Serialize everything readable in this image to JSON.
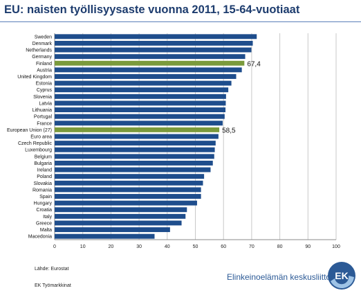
{
  "title": "EU: naisten työllisyysaste vuonna 2011, 15-64-vuotiaat",
  "source": "Lähde: Eurostat",
  "footer_left": "EK Työmarkkinat",
  "brand": "Elinkeinoelämän keskusliitto",
  "logo_text": "EK",
  "colors": {
    "bar": "#1e4d8c",
    "highlight": "#7a9a3c",
    "title": "#1d3c6e"
  },
  "chart_data": {
    "type": "bar",
    "orientation": "horizontal",
    "title": "EU: naisten työllisyysaste vuonna 2011, 15-64-vuotiaat",
    "categories": [
      "Sweden",
      "Denmark",
      "Netherlands",
      "Germany",
      "Finland",
      "Austria",
      "United Kingdom",
      "Estonia",
      "Cyprus",
      "Slovenia",
      "Latvia",
      "Lithuania",
      "Portugal",
      "France",
      "European Union (27)",
      "Euro area",
      "Czech Republic",
      "Luxembourg",
      "Belgium",
      "Bulgaria",
      "Ireland",
      "Poland",
      "Slovakia",
      "Romania",
      "Spain",
      "Hungary",
      "Croatia",
      "Italy",
      "Greece",
      "Malta",
      "Macedonia"
    ],
    "values": [
      71.8,
      70.4,
      69.9,
      67.7,
      67.4,
      66.5,
      64.5,
      62.8,
      61.7,
      60.9,
      60.8,
      60.7,
      60.4,
      59.7,
      58.5,
      58.2,
      57.2,
      56.9,
      56.7,
      56.2,
      55.4,
      53.1,
      52.7,
      52.0,
      52.0,
      50.6,
      47.0,
      46.5,
      45.1,
      41.0,
      35.5
    ],
    "highlighted": [
      "Finland",
      "European Union (27)"
    ],
    "data_labels": [
      {
        "category": "Finland",
        "text": "67,4"
      },
      {
        "category": "European Union (27)",
        "text": "58,5"
      }
    ],
    "xlim": [
      0,
      100
    ],
    "xticks": [
      0,
      10,
      20,
      30,
      40,
      50,
      60,
      70,
      80,
      90,
      100
    ],
    "grid": "vertical"
  }
}
